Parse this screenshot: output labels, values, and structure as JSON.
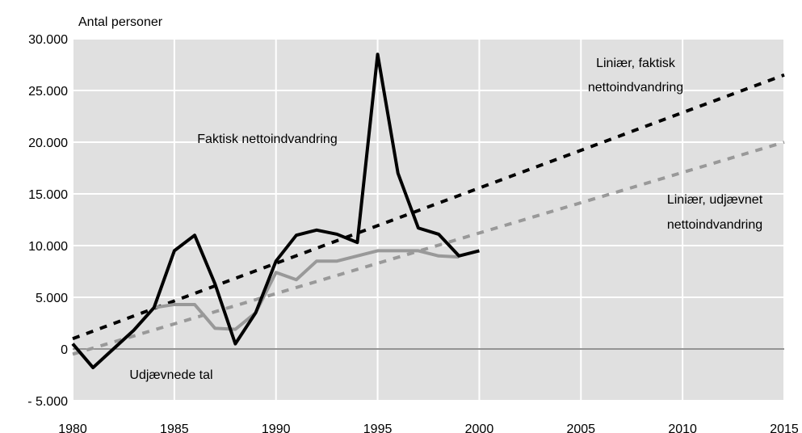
{
  "chart_data": {
    "type": "line",
    "title": "",
    "ylabel": "Antal personer",
    "xlabel": "",
    "xlim": [
      1980,
      2015
    ],
    "ylim": [
      -5000,
      30000
    ],
    "x_ticks": [
      1980,
      1985,
      1990,
      1995,
      2000,
      2005,
      2010,
      2015
    ],
    "y_ticks": [
      {
        "value": 30000,
        "label": "30.000"
      },
      {
        "value": 25000,
        "label": "25.000"
      },
      {
        "value": 20000,
        "label": "20.000"
      },
      {
        "value": 15000,
        "label": "15.000"
      },
      {
        "value": 10000,
        "label": "10.000"
      },
      {
        "value": 5000,
        "label": "5.000"
      },
      {
        "value": 0,
        "label": "0"
      },
      {
        "value": -5000,
        "label": "- 5.000"
      }
    ],
    "grid": true,
    "background": "#e0e0e0",
    "series": [
      {
        "name": "Faktisk nettoindvandring",
        "color": "#000000",
        "style": "solid",
        "x": [
          1980,
          1981,
          1982,
          1983,
          1984,
          1985,
          1986,
          1987,
          1988,
          1989,
          1990,
          1991,
          1992,
          1993,
          1994,
          1995,
          1996,
          1997,
          1998,
          1999,
          2000
        ],
        "values": [
          500,
          -1800,
          0,
          1800,
          4000,
          9500,
          11000,
          6300,
          500,
          3500,
          8500,
          11000,
          11500,
          11100,
          10300,
          28500,
          17000,
          11700,
          11100,
          9000,
          9500
        ]
      },
      {
        "name": "Udjævnede tal",
        "color": "#999999",
        "style": "solid",
        "x": [
          1980,
          1981,
          1982,
          1983,
          1984,
          1985,
          1986,
          1987,
          1988,
          1989,
          1990,
          1991,
          1992,
          1993,
          1994,
          1995,
          1996,
          1997,
          1998,
          1999
        ],
        "values": [
          500,
          -1800,
          0,
          1800,
          4000,
          4300,
          4300,
          2000,
          1900,
          3500,
          7400,
          6700,
          8500,
          8500,
          9000,
          9500,
          9500,
          9500,
          9000,
          8900
        ]
      },
      {
        "name": "Liniær, faktisk nettoindvandring",
        "color": "#000000",
        "style": "dashed",
        "x": [
          1980,
          2015
        ],
        "values": [
          1000,
          26500
        ]
      },
      {
        "name": "Liniær, udjævnet nettoindvandring",
        "color": "#999999",
        "style": "dashed",
        "x": [
          1980,
          2015
        ],
        "values": [
          -500,
          20000
        ]
      }
    ],
    "annotations": [
      {
        "lines": [
          "Liniær, faktisk",
          "nettoindvandring"
        ]
      },
      {
        "lines": [
          "Faktisk nettoindvandring"
        ]
      },
      {
        "lines": [
          "Liniær, udjævnet",
          "nettoindvandring"
        ]
      },
      {
        "lines": [
          "Udjævnede tal"
        ]
      }
    ]
  }
}
